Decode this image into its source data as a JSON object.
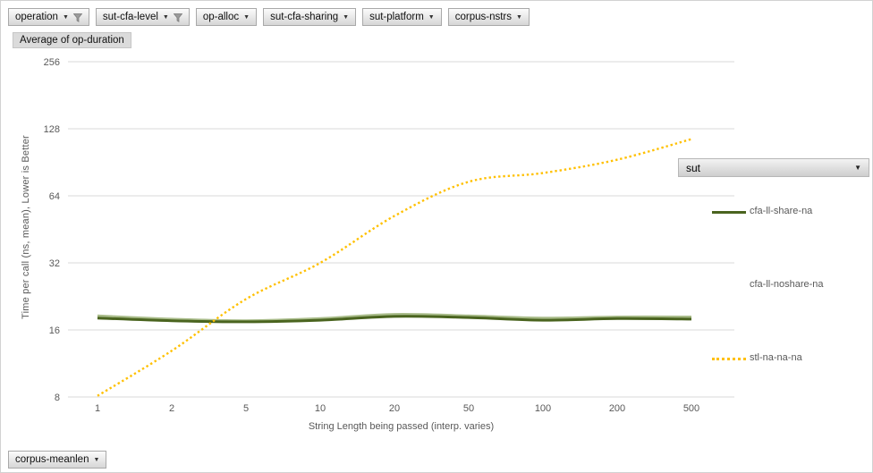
{
  "pivot_fields": {
    "top_row": [
      {
        "label": "operation",
        "filtered": true
      },
      {
        "label": "sut-cfa-level",
        "filtered": true
      },
      {
        "label": "op-alloc",
        "filtered": false
      },
      {
        "label": "sut-cfa-sharing",
        "filtered": false
      },
      {
        "label": "sut-platform",
        "filtered": false
      },
      {
        "label": "corpus-nstrs",
        "filtered": false
      }
    ],
    "value_field": "Average of op-duration",
    "axis_field_bottom": "corpus-meanlen",
    "legend_field": "sut"
  },
  "chart_data": {
    "type": "line",
    "title": "",
    "xlabel": "String Length  being passed (interp. varies)",
    "ylabel": "Time per call (ns, mean),  Lower is Better",
    "x_scale": "categorical (log-spaced lengths)",
    "y_scale": "log2",
    "ylim": [
      8,
      256
    ],
    "y_ticks": [
      256,
      128,
      64,
      32,
      16,
      8
    ],
    "grid": "horizontal",
    "legend_position": "right",
    "categories": [
      1,
      2,
      5,
      10,
      20,
      50,
      100,
      200,
      500
    ],
    "series": [
      {
        "name": "cfa-ll-noshare-na",
        "color": "#a9bc8a",
        "style": "solid",
        "values": [
          18.5,
          17.9,
          17.6,
          18.0,
          18.8,
          18.5,
          18.1,
          18.3,
          18.3
        ]
      },
      {
        "name": "cfa-ll-share-na",
        "color": "#4a641f",
        "style": "solid",
        "values": [
          18.1,
          17.6,
          17.4,
          17.7,
          18.4,
          18.2,
          17.7,
          18.0,
          17.9
        ]
      },
      {
        "name": "stl-na-na-na",
        "color": "#ffc000",
        "style": "dotted",
        "values": [
          8.1,
          12.9,
          22,
          32,
          52,
          74,
          81,
          93,
          115
        ]
      }
    ]
  },
  "legend": {
    "field_label": "sut",
    "entries": [
      {
        "label": "cfa-ll-share-na",
        "marker": "solid",
        "color": "#4a641f"
      },
      {
        "label": "cfa-ll-noshare-na",
        "marker": "none",
        "color": "#ffffff"
      },
      {
        "label": "stl-na-na-na",
        "marker": "dotted",
        "color": "#ffc000"
      }
    ]
  },
  "colors": {
    "grid": "#d9d9d9",
    "axis_text": "#595959",
    "series_dark_green": "#4a641f",
    "series_light_green": "#a9bc8a",
    "series_yellow": "#ffc000",
    "button_border": "#a9a9a9"
  }
}
